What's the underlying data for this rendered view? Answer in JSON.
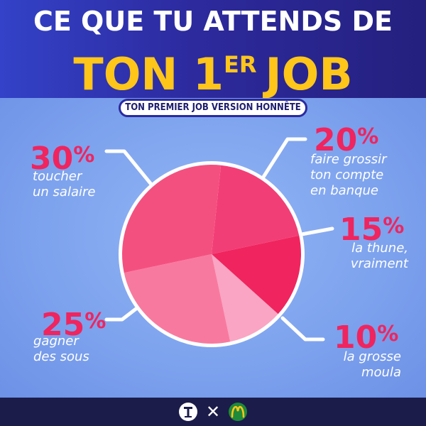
{
  "header": {
    "line1": "CE QUE TU ATTENDS DE",
    "line2_main": "TON 1",
    "line2_sup": "ER",
    "line2_end": "JOB"
  },
  "subtitle": "TON PREMIER JOB VERSION HONNÊTE",
  "colors": {
    "header_bg": "#2d2a9e",
    "title_yellow": "#ffc61a",
    "accent_pink": "#f0245e",
    "body_bg": "#7fa6ef",
    "footer_bg": "#1b1c4a"
  },
  "chart_data": {
    "type": "pie",
    "slices": [
      {
        "value": 20,
        "pct_label": "20",
        "label_lines": [
          "faire grossir",
          "ton compte",
          "en banque"
        ],
        "color": "#f23e76"
      },
      {
        "value": 15,
        "pct_label": "15",
        "label_lines": [
          "la thune,",
          "vraiment"
        ],
        "color": "#f0245e"
      },
      {
        "value": 10,
        "pct_label": "10",
        "label_lines": [
          "la grosse",
          "moula"
        ],
        "color": "#f9a5c3"
      },
      {
        "value": 25,
        "pct_label": "25",
        "label_lines": [
          "gagner",
          "des sous"
        ],
        "color": "#f8799f"
      },
      {
        "value": 30,
        "pct_label": "30",
        "label_lines": [
          "toucher",
          "un salaire"
        ],
        "color": "#f4507f"
      }
    ],
    "percent_sign": "%"
  },
  "footer": {
    "logo_left": "t-logo-icon",
    "separator": "✕",
    "logo_right": "mcdonalds-m-icon"
  }
}
